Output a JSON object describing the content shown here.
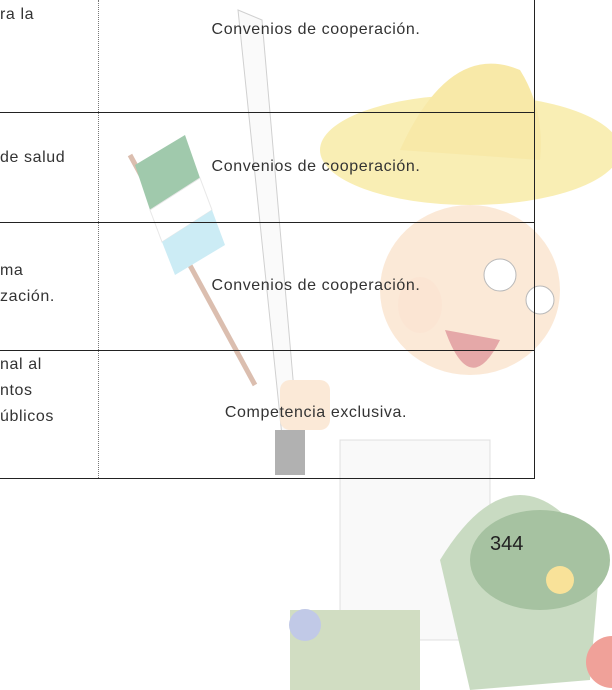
{
  "table": {
    "rows": [
      {
        "left": [
          "ra la"
        ],
        "right": "Convenios de cooperación."
      },
      {
        "left": [
          "de salud"
        ],
        "right": "Convenios de cooperación."
      },
      {
        "left": [
          "ma",
          "zación."
        ],
        "right": "Convenios de cooperación."
      },
      {
        "left": [
          "nal al",
          "ntos",
          "úblicos"
        ],
        "right": "Competencia exclusiva."
      }
    ]
  },
  "page_number": "344"
}
